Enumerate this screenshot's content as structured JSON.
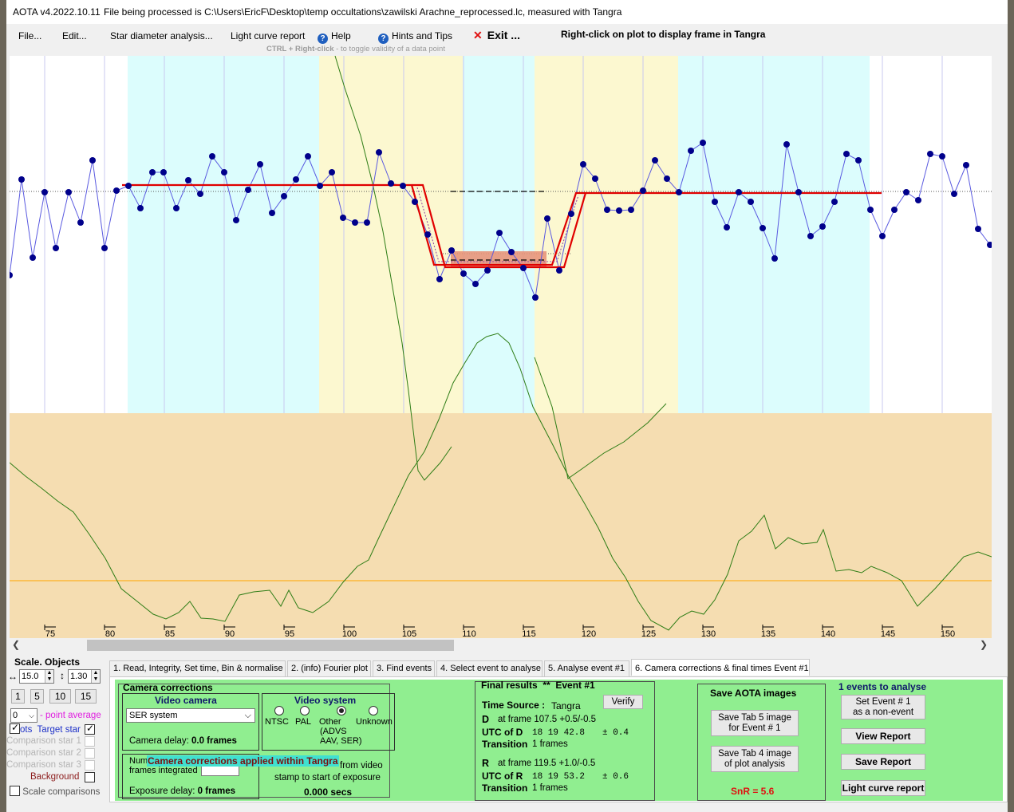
{
  "title": {
    "app": "AOTA v4.2022.10.11",
    "file_text": "File being processed is C:\\Users\\EricF\\Desktop\\temp occultations\\zawilski Arachne_reprocessed.lc, measured with Tangra"
  },
  "menu": {
    "file": "File...",
    "edit": "Edit...",
    "star_diameter": "Star diameter analysis...",
    "light_curve_report": "Light curve report",
    "help": "Help",
    "hints": "Hints and Tips",
    "exit_icon": "close-x-icon",
    "exit": "Exit ...",
    "right_click_note": "Right-click on plot to display frame in Tangra",
    "ctrl_hint_key": "CTRL + Right-click",
    "ctrl_hint_text": "  -  to toggle validity of a data point"
  },
  "plot": {
    "x_ticks": [
      "75",
      "80",
      "85",
      "90",
      "95",
      "100",
      "105",
      "110",
      "115",
      "120",
      "125",
      "130",
      "135",
      "140",
      "145",
      "150"
    ],
    "colors": {
      "cyan_band": "#dcfdfd",
      "yellow_band": "#fcf8d0",
      "lower_panel": "#f5ddb1",
      "model_line": "#e00000",
      "data_points": "#00008b",
      "data_line": "#5a5ae0",
      "green_curve": "#2e7d16",
      "orange_line": "#ffa500",
      "event_box": "#e8957a"
    }
  },
  "left_panel": {
    "scale_objects": "Scale.  Objects",
    "scale_x": "15.0",
    "scale_y": "1.30",
    "buttons": [
      "1",
      "5",
      "10",
      "15"
    ],
    "point_avg_value": "0",
    "point_avg_label": "- point average",
    "plots_label": "ots",
    "target_star": "Target star",
    "comparison1": "Comparison star 1",
    "comparison2": "Comparison star 2",
    "comparison3": "Comparison star 3",
    "background": "Background",
    "scale_comparisons": "Scale comparisons"
  },
  "tabs": [
    "1.  Read, Integrity, Set time, Bin & normalise",
    "2. (info)  Fourier plot",
    "3. Find events",
    "4. Select event to analyse",
    "5. Analyse event #1",
    "6. Camera corrections & final times Event #1"
  ],
  "camera": {
    "heading": "Camera corrections",
    "video_camera": "Video camera",
    "camera_select": "SER system",
    "camera_delay_label": "Camera delay:",
    "camera_delay_value": "0.0 frames",
    "video_system": "Video system",
    "ntsc": "NTSC",
    "pal": "PAL",
    "other": "Other",
    "other_detail": "(ADVS\nAAV, SER)",
    "unknown": "Unknown",
    "frames_integrated_1": "Num",
    "frames_integrated_2": "frames integrated",
    "tangra_overlay": "Camera corrections applied within Tangra",
    "exposure_delay_label": "Exposure delay:",
    "exposure_delay_value": "0 frames",
    "stamp_1": "from video",
    "stamp_2": "stamp to start of exposure",
    "stamp_value": "0.000 secs"
  },
  "final": {
    "heading": "Final results",
    "stars": "**",
    "event": "Event #1",
    "time_source_label": "Time Source :",
    "time_source_value": "Tangra",
    "verify": "Verify",
    "d_label": "D",
    "d_frame": "at frame 107.5  +0.5/-0.5",
    "utc_d_label": "UTC of D",
    "utc_d_value": "18 19 42.8",
    "utc_d_err": "± 0.4",
    "transition_label": "Transition",
    "transition_d": "1 frames",
    "r_label": "R",
    "r_frame": "at frame 119.5  +1.0/-0.5",
    "utc_r_label": "UTC of R",
    "utc_r_value": "18 19 53.2",
    "utc_r_err": "± 0.6",
    "transition_r": "1 frames"
  },
  "save": {
    "heading": "Save AOTA images",
    "tab5": "Save Tab 5 image\nfor Event # 1",
    "tab4": "Save Tab 4 image\nof plot analysis",
    "snr": "SnR = 5.6"
  },
  "report": {
    "events": "1  events to analyse",
    "set_event": "Set Event # 1\nas a non-event",
    "view": "View Report",
    "save": "Save Report",
    "light_curve": "Light curve report"
  }
}
